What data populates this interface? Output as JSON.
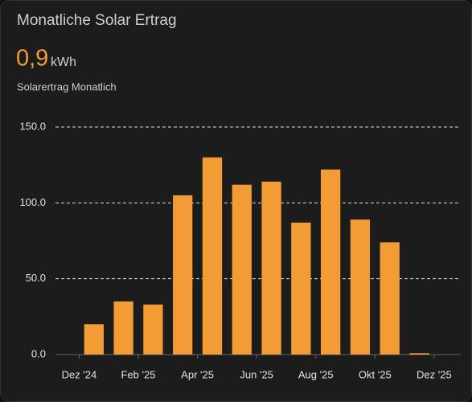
{
  "card": {
    "title": "Monatliche Solar Ertrag",
    "state": "0,9",
    "unit": "kWh",
    "subtitle": "Solarertrag Monatlich"
  },
  "chart_data": {
    "type": "bar",
    "color": "#f39c35",
    "x": [
      0.5,
      1.5,
      2.5,
      3.5,
      4.5,
      5.5,
      6.5,
      7.5,
      8.5,
      9.5,
      10.5,
      11.5
    ],
    "values": [
      20,
      35,
      33,
      105,
      130,
      112,
      114,
      87,
      122,
      89,
      74,
      0.9
    ],
    "xlim": [
      -0.8,
      12.9
    ],
    "xticks": [
      {
        "value": 0,
        "label": "Dez '24"
      },
      {
        "value": 2,
        "label": "Feb '25"
      },
      {
        "value": 4,
        "label": "Apr '25"
      },
      {
        "value": 6,
        "label": "Jun '25"
      },
      {
        "value": 8,
        "label": "Aug '25"
      },
      {
        "value": 10,
        "label": "Okt '25"
      },
      {
        "value": 12,
        "label": "Dez '25"
      }
    ],
    "ylim": [
      0,
      150
    ],
    "yticks": [
      {
        "value": 0,
        "label": "0.0"
      },
      {
        "value": 50,
        "label": "50.0"
      },
      {
        "value": 100,
        "label": "100.0"
      },
      {
        "value": 150,
        "label": "150.0"
      }
    ],
    "grid": true
  }
}
